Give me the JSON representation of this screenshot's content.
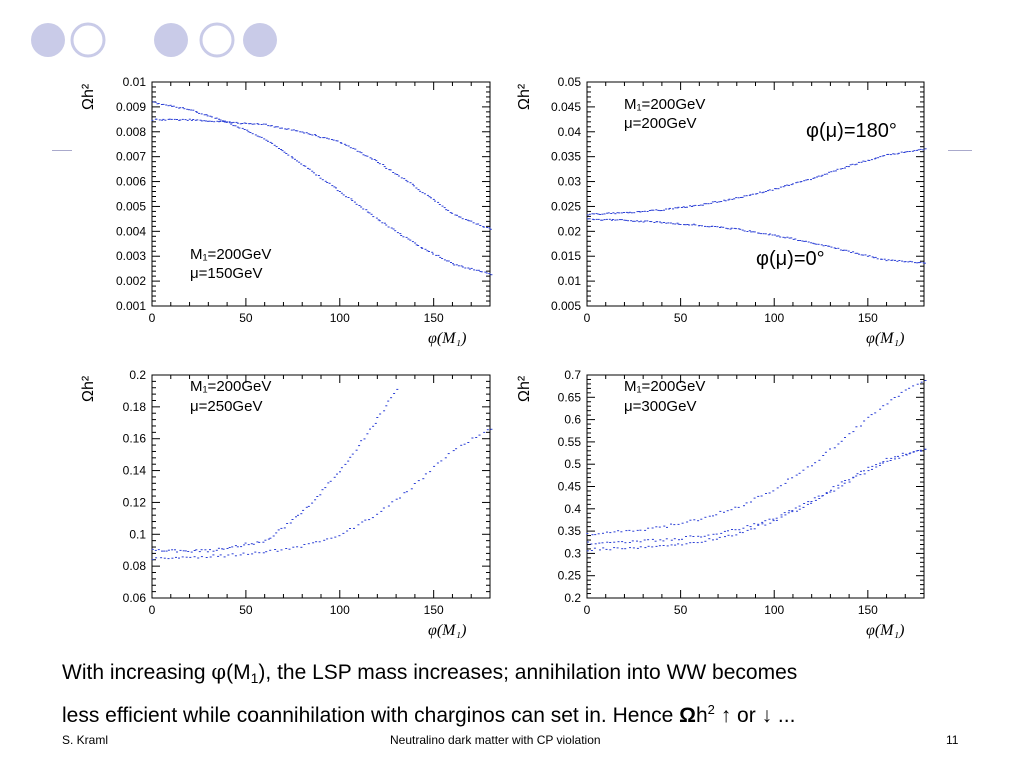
{
  "slide": {
    "footer_author": "S. Kraml",
    "footer_title": "Neutralino dark matter with CP violation",
    "page_number": "11",
    "caption": {
      "line1_a": "With increasing ",
      "line1_phi": "φ",
      "line1_b": "(M",
      "line1_sub": "1",
      "line1_c": "), the LSP mass increases; annihilation into WW becomes",
      "line2_a": "less efficient while coannihilation with charginos can set in. Hence ",
      "line2_omega": "Ω",
      "line2_h": "h",
      "line2_sup": "2",
      "line2_b": " ↑ or ↓ ..."
    },
    "colors": {
      "points": "#2b3fd6",
      "decor_circle": "#c9cbe8",
      "decor_ring": "#c9cbe8"
    }
  },
  "chart_data": [
    {
      "type": "scatter",
      "ylabel": "Ωh²",
      "xlabel": "φ(M₁)",
      "annotation": [
        "M₁=200GeV",
        "μ=150GeV"
      ],
      "xlim": [
        0,
        180
      ],
      "ylim": [
        0.001,
        0.01
      ],
      "xticks": [
        "0",
        "50",
        "100",
        "150"
      ],
      "yticks": [
        "0.001",
        "0.002",
        "0.003",
        "0.004",
        "0.005",
        "0.006",
        "0.007",
        "0.008",
        "0.009",
        "0.01"
      ],
      "series": [
        {
          "x": [
            0,
            20,
            40,
            60,
            80,
            100,
            120,
            140,
            160,
            180
          ],
          "y": [
            0.0085,
            0.0085,
            0.0084,
            0.0083,
            0.008,
            0.0076,
            0.0068,
            0.0058,
            0.0047,
            0.0041
          ]
        },
        {
          "x": [
            0,
            20,
            40,
            60,
            80,
            100,
            120,
            140,
            160,
            180
          ],
          "y": [
            0.0092,
            0.0089,
            0.0084,
            0.0077,
            0.0067,
            0.0056,
            0.0045,
            0.0035,
            0.0027,
            0.0023
          ]
        }
      ]
    },
    {
      "type": "scatter",
      "ylabel": "Ωh²",
      "xlabel": "φ(M₁)",
      "annotation": [
        "M₁=200GeV",
        "μ=200GeV"
      ],
      "curve_labels": [
        "φ(μ)=180°",
        "φ(μ)=0°"
      ],
      "xlim": [
        0,
        180
      ],
      "ylim": [
        0.005,
        0.05
      ],
      "xticks": [
        "0",
        "50",
        "100",
        "150"
      ],
      "yticks": [
        "0.005",
        "0.01",
        "0.015",
        "0.02",
        "0.025",
        "0.03",
        "0.035",
        "0.04",
        "0.045",
        "0.05"
      ],
      "series": [
        {
          "x": [
            0,
            20,
            40,
            60,
            80,
            100,
            120,
            140,
            160,
            180
          ],
          "y": [
            0.0235,
            0.0238,
            0.0244,
            0.0254,
            0.0268,
            0.0286,
            0.0307,
            0.0333,
            0.0355,
            0.0366
          ]
        },
        {
          "x": [
            0,
            20,
            40,
            60,
            80,
            100,
            120,
            140,
            160,
            180
          ],
          "y": [
            0.0225,
            0.0223,
            0.0219,
            0.0213,
            0.0205,
            0.0193,
            0.0178,
            0.016,
            0.0143,
            0.0137
          ]
        }
      ]
    },
    {
      "type": "scatter",
      "ylabel": "Ωh²",
      "xlabel": "φ(M₁)",
      "annotation": [
        "M₁=200GeV",
        "μ=250GeV"
      ],
      "xlim": [
        0,
        180
      ],
      "ylim": [
        0.06,
        0.2
      ],
      "xticks": [
        "0",
        "50",
        "100",
        "150"
      ],
      "yticks": [
        "0.06",
        "0.08",
        "0.1",
        "0.12",
        "0.14",
        "0.16",
        "0.18",
        "0.2"
      ],
      "series": [
        {
          "x": [
            0,
            20,
            40,
            60,
            80,
            100,
            120,
            140,
            160,
            180
          ],
          "y": [
            0.085,
            0.086,
            0.087,
            0.089,
            0.093,
            0.1,
            0.113,
            0.132,
            0.153,
            0.167
          ]
        },
        {
          "x": [
            0,
            30,
            60,
            70,
            85,
            95,
            105,
            112,
            118,
            125,
            130
          ],
          "y": [
            0.09,
            0.09,
            0.096,
            0.105,
            0.12,
            0.134,
            0.148,
            0.16,
            0.17,
            0.182,
            0.192
          ]
        }
      ]
    },
    {
      "type": "scatter",
      "ylabel": "Ωh²",
      "xlabel": "φ(M₁)",
      "annotation": [
        "M₁=200GeV",
        "μ=300GeV"
      ],
      "xlim": [
        0,
        180
      ],
      "ylim": [
        0.2,
        0.7
      ],
      "xticks": [
        "0",
        "50",
        "100",
        "150"
      ],
      "yticks": [
        "0.2",
        "0.25",
        "0.3",
        "0.35",
        "0.4",
        "0.45",
        "0.5",
        "0.55",
        "0.6",
        "0.65",
        "0.7"
      ],
      "series": [
        {
          "x": [
            0,
            20,
            40,
            60,
            80,
            100,
            120,
            140,
            160,
            180
          ],
          "y": [
            0.31,
            0.312,
            0.317,
            0.327,
            0.345,
            0.375,
            0.415,
            0.465,
            0.51,
            0.535
          ]
        },
        {
          "x": [
            0,
            20,
            40,
            60,
            80,
            100,
            120,
            140,
            160,
            180
          ],
          "y": [
            0.345,
            0.35,
            0.36,
            0.378,
            0.405,
            0.445,
            0.5,
            0.57,
            0.64,
            0.69
          ]
        },
        {
          "x": [
            0,
            20,
            40,
            60,
            80,
            100,
            120,
            140,
            160,
            180
          ],
          "y": [
            0.325,
            0.327,
            0.331,
            0.34,
            0.355,
            0.38,
            0.42,
            0.47,
            0.515,
            0.535
          ]
        }
      ]
    }
  ]
}
